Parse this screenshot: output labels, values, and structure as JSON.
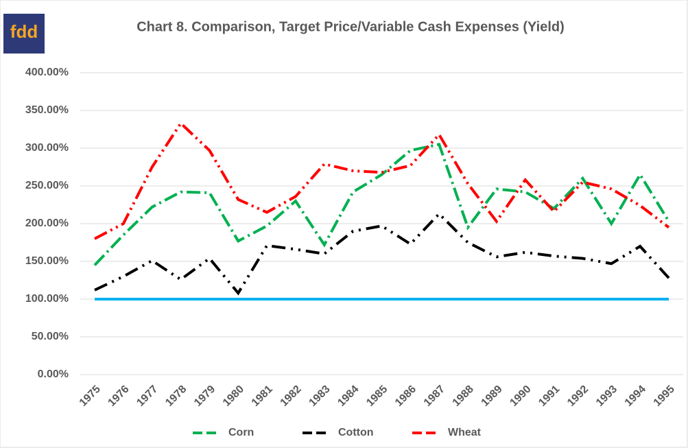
{
  "logo": "fdd",
  "chart_data": {
    "type": "line",
    "title": "Chart 8. Comparison,  Target Price/Variable Cash Expenses (Yield)",
    "categories": [
      "1975",
      "1976",
      "1977",
      "1978",
      "1979",
      "1980",
      "1981",
      "1982",
      "1983",
      "1984",
      "1985",
      "1986",
      "1987",
      "1988",
      "1989",
      "1990",
      "1991",
      "1992",
      "1993",
      "1994",
      "1995"
    ],
    "series": [
      {
        "name": "Corn",
        "color": "#00b050",
        "values": [
          145,
          185,
          222,
          242,
          241,
          177,
          197,
          230,
          172,
          242,
          265,
          297,
          305,
          195,
          246,
          242,
          220,
          260,
          200,
          265,
          203
        ]
      },
      {
        "name": "Cotton",
        "color": "#000000",
        "values": [
          112,
          130,
          151,
          126,
          154,
          108,
          171,
          166,
          160,
          190,
          197,
          173,
          213,
          175,
          156,
          162,
          157,
          154,
          147,
          170,
          128
        ]
      },
      {
        "name": "Wheat",
        "color": "#ff0000",
        "values": [
          180,
          200,
          275,
          333,
          297,
          232,
          215,
          236,
          279,
          270,
          268,
          277,
          318,
          253,
          203,
          258,
          216,
          255,
          246,
          224,
          195
        ]
      },
      {
        "color": "#00b0f0",
        "values": [
          100,
          100,
          100,
          100,
          100,
          100,
          100,
          100,
          100,
          100,
          100,
          100,
          100,
          100,
          100,
          100,
          100,
          100,
          100,
          100,
          100
        ]
      }
    ],
    "ylim": [
      0,
      400
    ],
    "yticks": [
      {
        "value": 0,
        "label": "0.00%"
      },
      {
        "value": 50,
        "label": "50.00%"
      },
      {
        "value": 100,
        "label": "100.00%"
      },
      {
        "value": 150,
        "label": "150.00%"
      },
      {
        "value": 200,
        "label": "200.00%"
      },
      {
        "value": 250,
        "label": "250.00%"
      },
      {
        "value": 300,
        "label": "300.00%"
      },
      {
        "value": 350,
        "label": "350.00%"
      },
      {
        "value": 400,
        "label": "400.00%"
      }
    ],
    "grid": true,
    "legend": "bottom"
  }
}
